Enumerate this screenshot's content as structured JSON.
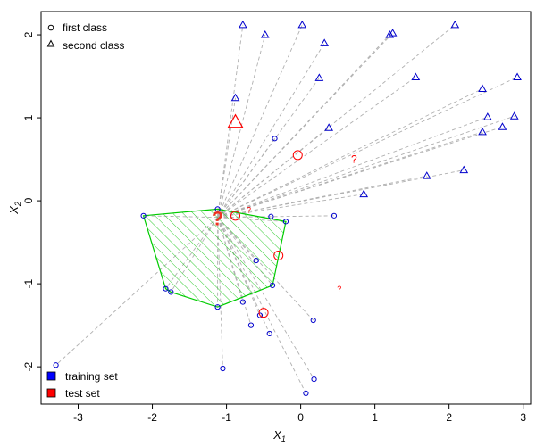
{
  "chart_data": {
    "type": "scatter",
    "title": "",
    "xlabel": "X",
    "xlabel_sub": "1",
    "ylabel": "X",
    "ylabel_sub": "2",
    "xlim": [
      -3.5,
      3.1
    ],
    "ylim": [
      -2.45,
      2.28
    ],
    "xticks": [
      -3,
      -2,
      -1,
      0,
      1,
      2,
      3
    ],
    "yticks": [
      -2,
      -1,
      0,
      1,
      2
    ],
    "grid": false,
    "legend_top": [
      {
        "marker": "circle",
        "label": "first class"
      },
      {
        "marker": "triangle",
        "label": "second class"
      }
    ],
    "legend_bottom": [
      {
        "color": "#0000ff",
        "label": "training set"
      },
      {
        "color": "#ff0000",
        "label": "test set"
      }
    ],
    "colors": {
      "training": "#0000cc",
      "test": "#ff0000",
      "hull_stroke": "#00cc00",
      "hatch": "#33cc33",
      "lines": "#b0b0b0"
    },
    "query_point": {
      "x": -1.12,
      "y": -0.2,
      "label": "?"
    },
    "series": [
      {
        "name": "first class",
        "marker": "circle",
        "set": "training",
        "points": [
          [
            -2.12,
            -0.18
          ],
          [
            -1.12,
            -0.1
          ],
          [
            -0.4,
            -0.19
          ],
          [
            -0.2,
            -0.25
          ],
          [
            -0.35,
            0.75
          ],
          [
            0.45,
            -0.18
          ],
          [
            -0.6,
            -0.72
          ],
          [
            -0.38,
            -1.02
          ],
          [
            -1.12,
            -1.28
          ],
          [
            -0.78,
            -1.22
          ],
          [
            -1.82,
            -1.06
          ],
          [
            -1.75,
            -1.1
          ],
          [
            -0.55,
            -1.38
          ],
          [
            -0.67,
            -1.5
          ],
          [
            -0.42,
            -1.6
          ],
          [
            0.17,
            -1.44
          ],
          [
            -1.05,
            -2.02
          ],
          [
            0.18,
            -2.15
          ],
          [
            0.07,
            -2.32
          ],
          [
            -3.3,
            -1.98
          ]
        ]
      },
      {
        "name": "second class",
        "marker": "triangle",
        "set": "training",
        "points": [
          [
            -0.78,
            2.12
          ],
          [
            -0.48,
            2.0
          ],
          [
            0.02,
            2.12
          ],
          [
            0.32,
            1.9
          ],
          [
            1.2,
            2.0
          ],
          [
            1.24,
            2.02
          ],
          [
            2.08,
            2.12
          ],
          [
            0.25,
            1.48
          ],
          [
            1.55,
            1.49
          ],
          [
            2.45,
            1.35
          ],
          [
            2.92,
            1.49
          ],
          [
            2.52,
            1.01
          ],
          [
            2.88,
            1.02
          ],
          [
            2.72,
            0.89
          ],
          [
            2.45,
            0.83
          ],
          [
            0.38,
            0.88
          ],
          [
            -0.88,
            1.24
          ],
          [
            2.2,
            0.37
          ],
          [
            1.7,
            0.3
          ],
          [
            0.85,
            0.08
          ]
        ]
      },
      {
        "name": "test",
        "marker": "mixed",
        "set": "test",
        "points": [
          {
            "x": -0.88,
            "y": 0.95,
            "m": "triangle",
            "s": "large"
          },
          {
            "x": -0.04,
            "y": 0.55,
            "m": "circle",
            "s": "medium"
          },
          {
            "x": -0.88,
            "y": -0.18,
            "m": "circle",
            "s": "medium"
          },
          {
            "x": -0.3,
            "y": -0.66,
            "m": "circle",
            "s": "medium"
          },
          {
            "x": -0.5,
            "y": -1.35,
            "m": "circle",
            "s": "medium"
          },
          {
            "x": 0.72,
            "y": 0.5,
            "m": "q",
            "s": "medium"
          },
          {
            "x": -0.7,
            "y": -0.1,
            "m": "q",
            "s": "small"
          },
          {
            "x": 0.52,
            "y": -1.05,
            "m": "q",
            "s": "small"
          }
        ]
      }
    ],
    "hull": [
      [
        -2.12,
        -0.18
      ],
      [
        -1.12,
        -0.1
      ],
      [
        -0.2,
        -0.25
      ],
      [
        -0.38,
        -1.02
      ],
      [
        -1.12,
        -1.28
      ],
      [
        -1.75,
        -1.1
      ],
      [
        -1.82,
        -1.06
      ]
    ]
  }
}
